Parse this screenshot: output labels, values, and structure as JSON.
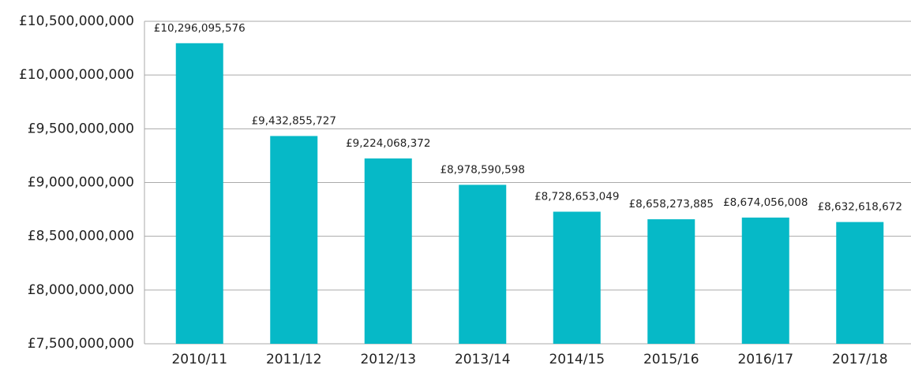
{
  "chart_data": {
    "type": "bar",
    "categories": [
      "2010/11",
      "2011/12",
      "2012/13",
      "2013/14",
      "2014/15",
      "2015/16",
      "2016/17",
      "2017/18"
    ],
    "values": [
      10296095576,
      9432855727,
      9224068372,
      8978590598,
      8728653049,
      8658273885,
      8674056008,
      8632618672
    ],
    "value_labels": [
      "£10,296,095,576",
      "£9,432,855,727",
      "£9,224,068,372",
      "£8,978,590,598",
      "£8,728,653,049",
      "£8,658,273,885",
      "£8,674,056,008",
      "£8,632,618,672"
    ],
    "color": "#06b9c7",
    "ylim": [
      7500000000,
      10500000000
    ],
    "yticks": [
      {
        "value": 7500000000,
        "label": "£7,500,000,000"
      },
      {
        "value": 8000000000,
        "label": "£8,000,000,000"
      },
      {
        "value": 8500000000,
        "label": "£8,500,000,000"
      },
      {
        "value": 9000000000,
        "label": "£9,000,000,000"
      },
      {
        "value": 9500000000,
        "label": "£9,500,000,000"
      },
      {
        "value": 10000000000,
        "label": "£10,000,000,000"
      },
      {
        "value": 10500000000,
        "label": "£10,500,000,000"
      }
    ],
    "grid": true
  }
}
